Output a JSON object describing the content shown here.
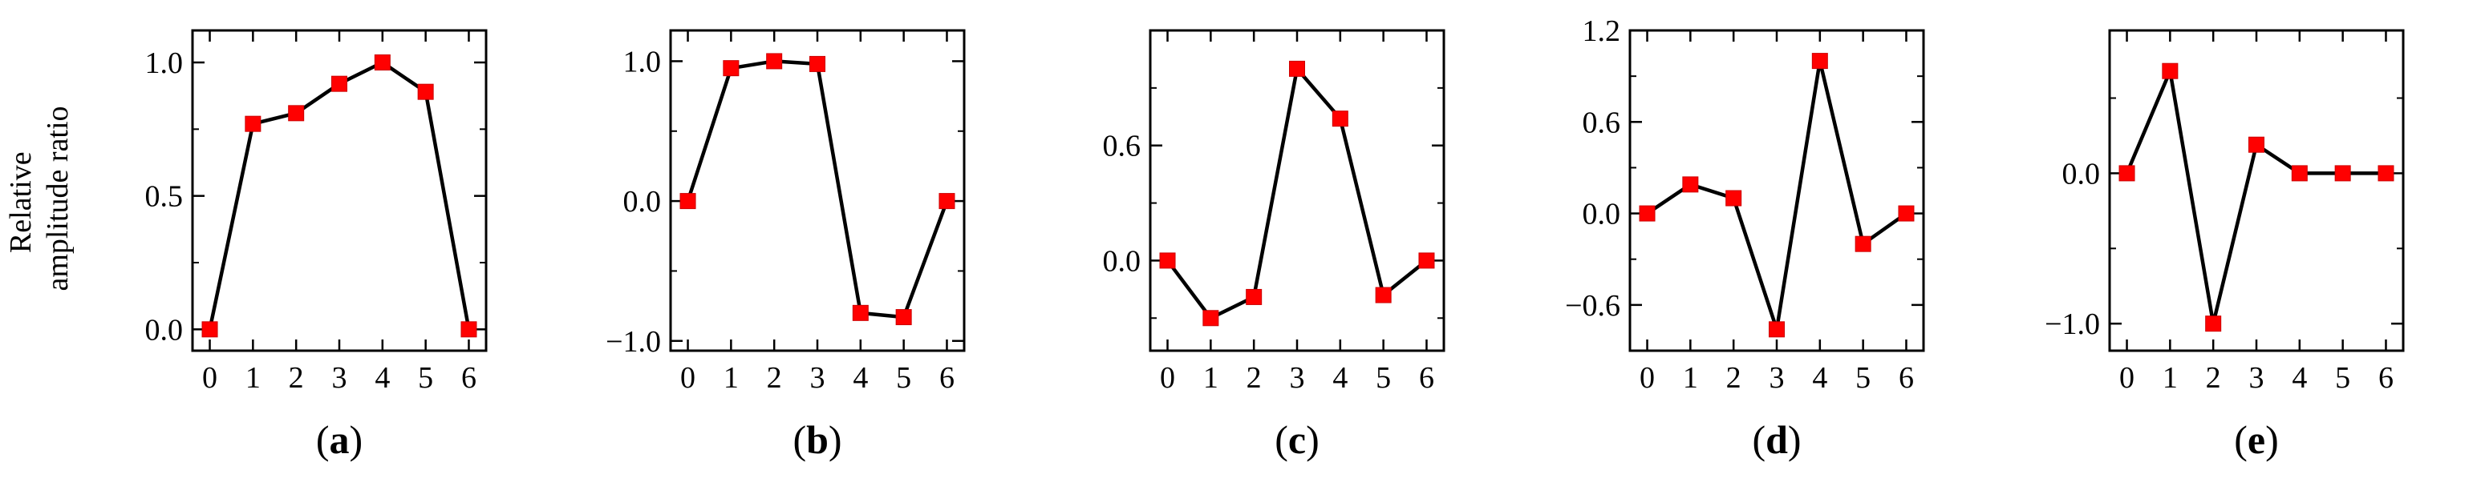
{
  "ylabel": [
    "Relative",
    "amplitude ratio"
  ],
  "colors": {
    "marker": "#ff0000",
    "line": "#000000",
    "axes": "#000000"
  },
  "chart_data": [
    {
      "type": "line",
      "panel_label": "(a)",
      "x": [
        0,
        1,
        2,
        3,
        4,
        5,
        6
      ],
      "values": [
        0.0,
        0.77,
        0.81,
        0.92,
        1.0,
        0.89,
        0.0
      ],
      "xticks": [
        "0",
        "1",
        "2",
        "3",
        "4",
        "5",
        "6"
      ],
      "yticks": [
        {
          "v": 0.0,
          "label": "0.0"
        },
        {
          "v": 0.5,
          "label": "0.5"
        },
        {
          "v": 1.0,
          "label": "1.0"
        }
      ],
      "xlim": [
        -0.4,
        6.4
      ],
      "ylim": [
        -0.08,
        1.12
      ],
      "minor": 0.25
    },
    {
      "type": "line",
      "panel_label": "(b)",
      "x": [
        0,
        1,
        2,
        3,
        4,
        5,
        6
      ],
      "values": [
        0.0,
        0.95,
        1.0,
        0.98,
        -0.8,
        -0.83,
        0.0
      ],
      "xticks": [
        "0",
        "1",
        "2",
        "3",
        "4",
        "5",
        "6"
      ],
      "yticks": [
        {
          "v": -1.0,
          "label": "−1.0"
        },
        {
          "v": 0.0,
          "label": "0.0"
        },
        {
          "v": 1.0,
          "label": "1.0"
        }
      ],
      "xlim": [
        -0.4,
        6.4
      ],
      "ylim": [
        -1.07,
        1.22
      ],
      "minor": 0.5
    },
    {
      "type": "line",
      "panel_label": "(c)",
      "x": [
        0,
        1,
        2,
        3,
        4,
        5,
        6
      ],
      "values": [
        0.0,
        -0.3,
        -0.19,
        1.0,
        0.74,
        -0.18,
        0.0
      ],
      "xticks": [
        "0",
        "1",
        "2",
        "3",
        "4",
        "5",
        "6"
      ],
      "yticks": [
        {
          "v": 0.0,
          "label": "0.0"
        },
        {
          "v": 0.6,
          "label": "0.6"
        }
      ],
      "xlim": [
        -0.4,
        6.4
      ],
      "ylim": [
        -0.47,
        1.2
      ],
      "minor": 0.3
    },
    {
      "type": "line",
      "panel_label": "(d)",
      "x": [
        0,
        1,
        2,
        3,
        4,
        5,
        6
      ],
      "values": [
        0.0,
        0.19,
        0.1,
        -0.76,
        1.0,
        -0.2,
        0.0
      ],
      "xticks": [
        "0",
        "1",
        "2",
        "3",
        "4",
        "5",
        "6"
      ],
      "yticks": [
        {
          "v": -0.6,
          "label": "−0.6"
        },
        {
          "v": 0.0,
          "label": "0.0"
        },
        {
          "v": 0.6,
          "label": "0.6"
        },
        {
          "v": 1.2,
          "label": "1.2"
        }
      ],
      "xlim": [
        -0.4,
        6.4
      ],
      "ylim": [
        -0.9,
        1.2
      ],
      "minor": 0.3
    },
    {
      "type": "line",
      "panel_label": "(e)",
      "x": [
        0,
        1,
        2,
        3,
        4,
        5,
        6
      ],
      "values": [
        0.0,
        0.68,
        -1.0,
        0.19,
        0.0,
        0.0,
        0.0
      ],
      "xticks": [
        "0",
        "1",
        "2",
        "3",
        "4",
        "5",
        "6"
      ],
      "yticks": [
        {
          "v": -1.0,
          "label": "−1.0"
        },
        {
          "v": 0.0,
          "label": "0.0"
        }
      ],
      "xlim": [
        -0.4,
        6.4
      ],
      "ylim": [
        -1.18,
        0.95
      ],
      "minor": 0.5
    }
  ]
}
